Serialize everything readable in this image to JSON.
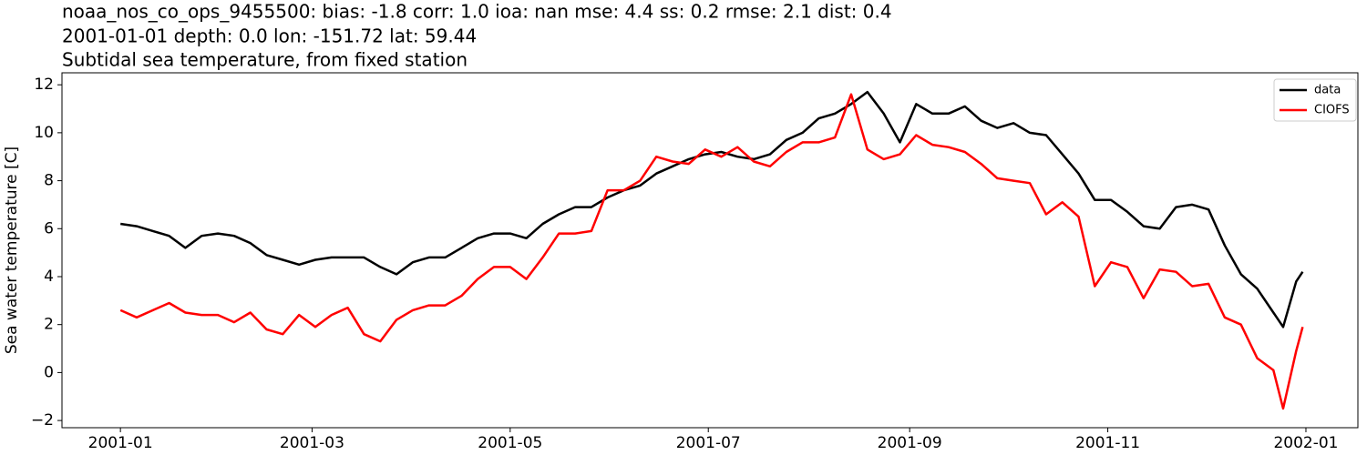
{
  "chart_data": {
    "type": "line",
    "title": [
      "noaa_nos_co_ops_9455500: bias: -1.8  corr: 1.0  ioa: nan  mse: 4.4  ss: 0.2  rmse: 2.1  dist: 0.4",
      "2001-01-01 depth: 0.0 lon: -151.72 lat: 59.44",
      "Subtidal sea temperature, from fixed station"
    ],
    "ylabel": "Sea water temperature [C]",
    "x": [
      "2001-01-01",
      "2001-01-06",
      "2001-01-11",
      "2001-01-16",
      "2001-01-21",
      "2001-01-26",
      "2001-01-31",
      "2001-02-05",
      "2001-02-10",
      "2001-02-15",
      "2001-02-20",
      "2001-02-25",
      "2001-03-02",
      "2001-03-07",
      "2001-03-12",
      "2001-03-17",
      "2001-03-22",
      "2001-03-27",
      "2001-04-01",
      "2001-04-06",
      "2001-04-11",
      "2001-04-16",
      "2001-04-21",
      "2001-04-26",
      "2001-05-01",
      "2001-05-06",
      "2001-05-11",
      "2001-05-16",
      "2001-05-21",
      "2001-05-26",
      "2001-05-31",
      "2001-06-05",
      "2001-06-10",
      "2001-06-15",
      "2001-06-20",
      "2001-06-25",
      "2001-06-30",
      "2001-07-05",
      "2001-07-10",
      "2001-07-15",
      "2001-07-20",
      "2001-07-25",
      "2001-07-30",
      "2001-08-04",
      "2001-08-09",
      "2001-08-14",
      "2001-08-19",
      "2001-08-24",
      "2001-08-29",
      "2001-09-03",
      "2001-09-08",
      "2001-09-13",
      "2001-09-18",
      "2001-09-23",
      "2001-09-28",
      "2001-10-03",
      "2001-10-08",
      "2001-10-13",
      "2001-10-18",
      "2001-10-23",
      "2001-10-28",
      "2001-11-02",
      "2001-11-07",
      "2001-11-12",
      "2001-11-17",
      "2001-11-22",
      "2001-11-27",
      "2001-12-02",
      "2001-12-07",
      "2001-12-12",
      "2001-12-17",
      "2001-12-22",
      "2001-12-25",
      "2001-12-29",
      "2001-12-31"
    ],
    "series": [
      {
        "name": "data",
        "color": "#000000",
        "values": [
          6.2,
          6.1,
          5.9,
          5.7,
          5.2,
          5.7,
          5.8,
          5.7,
          5.4,
          4.9,
          4.7,
          4.5,
          4.7,
          4.8,
          4.8,
          4.8,
          4.4,
          4.1,
          4.6,
          4.8,
          4.8,
          5.2,
          5.6,
          5.8,
          5.8,
          5.6,
          6.2,
          6.6,
          6.9,
          6.9,
          7.3,
          7.6,
          7.8,
          8.3,
          8.6,
          8.9,
          9.1,
          9.2,
          9.0,
          8.9,
          9.1,
          9.7,
          10.0,
          10.6,
          10.8,
          11.2,
          11.7,
          10.8,
          9.6,
          11.2,
          10.8,
          10.8,
          11.1,
          10.5,
          10.2,
          10.4,
          10.0,
          9.9,
          9.1,
          8.3,
          7.2,
          7.2,
          6.7,
          6.1,
          6.0,
          6.9,
          7.0,
          6.8,
          5.3,
          4.1,
          3.5,
          2.5,
          1.9,
          3.8,
          4.2
        ]
      },
      {
        "name": "CIOFS",
        "color": "#ff0000",
        "values": [
          2.6,
          2.3,
          2.6,
          2.9,
          2.5,
          2.4,
          2.4,
          2.1,
          2.5,
          1.8,
          1.6,
          2.4,
          1.9,
          2.4,
          2.7,
          1.6,
          1.3,
          2.2,
          2.6,
          2.8,
          2.8,
          3.2,
          3.9,
          4.4,
          4.4,
          3.9,
          4.8,
          5.8,
          5.8,
          5.9,
          7.6,
          7.6,
          8.0,
          9.0,
          8.8,
          8.7,
          9.3,
          9.0,
          9.4,
          8.8,
          8.6,
          9.2,
          9.6,
          9.6,
          9.8,
          11.6,
          9.3,
          8.9,
          9.1,
          9.9,
          9.5,
          9.4,
          9.2,
          8.7,
          8.1,
          8.0,
          7.9,
          6.6,
          7.1,
          6.5,
          3.6,
          4.6,
          4.4,
          3.1,
          4.3,
          4.2,
          3.6,
          3.7,
          2.3,
          2.0,
          0.6,
          0.1,
          -1.5,
          0.9,
          1.9
        ]
      }
    ],
    "xlim": [
      "2000-12-14",
      "2002-01-17"
    ],
    "xticks": [
      {
        "value": "2001-01-01",
        "label": "2001-01"
      },
      {
        "value": "2001-03-01",
        "label": "2001-03"
      },
      {
        "value": "2001-05-01",
        "label": "2001-05"
      },
      {
        "value": "2001-07-01",
        "label": "2001-07"
      },
      {
        "value": "2001-09-01",
        "label": "2001-09"
      },
      {
        "value": "2001-11-01",
        "label": "2001-11"
      },
      {
        "value": "2002-01-01",
        "label": "2002-01"
      }
    ],
    "ylim": [
      -2.3,
      12.5
    ],
    "yticks": [
      {
        "value": -2,
        "label": "−2"
      },
      0,
      2,
      4,
      6,
      8,
      10,
      12
    ],
    "grid": false,
    "legend": "upper right"
  }
}
